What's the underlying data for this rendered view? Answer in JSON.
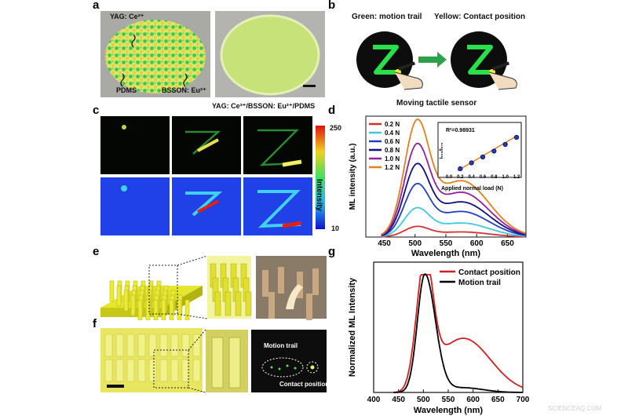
{
  "panels": {
    "a": "a",
    "b": "b",
    "c": "c",
    "d": "d",
    "e": "e",
    "f": "f",
    "g": "g"
  },
  "panel_a": {
    "label_yag": "YAG: Ce³⁺",
    "label_pdms": "PDMS",
    "label_bsson": "BSSON: Eu²⁺",
    "caption": "YAG: Ce³⁺/BSSON: Eu²⁺/PDMS"
  },
  "panel_b": {
    "green_label": "Green: motion trail",
    "yellow_label": "Yellow: Contact position",
    "caption": "Moving tactile sensor"
  },
  "panel_c": {
    "colorbar_max": "250",
    "colorbar_min": "10",
    "colorbar_label": "Intensity"
  },
  "panel_f": {
    "motion_trail": "Motion trail",
    "contact_position": "Contact position"
  },
  "chart_data": [
    {
      "id": "d",
      "type": "line",
      "xlabel": "Wavelength (nm)",
      "ylabel": "ML intensity (a.u.)",
      "xlim": [
        420,
        680
      ],
      "xticks": [
        "450",
        "500",
        "550",
        "600",
        "650"
      ],
      "yticks": "none",
      "legend_position": "top-left",
      "series": [
        {
          "name": "0.2 N",
          "color": "#d73030",
          "peak": 0.08
        },
        {
          "name": "0.4 N",
          "color": "#40c8e0",
          "peak": 0.22
        },
        {
          "name": "0.6 N",
          "color": "#2040c0",
          "peak": 0.4
        },
        {
          "name": "0.8 N",
          "color": "#101080",
          "peak": 0.55
        },
        {
          "name": "1.0 N",
          "color": "#9020a0",
          "peak": 0.7
        },
        {
          "name": "1.2 N",
          "color": "#e08020",
          "peak": 0.88
        }
      ],
      "inset": {
        "annotation": "R²=0.98931",
        "xlabel": "Applied normal load (N)",
        "ylabel": "I₅₀₀/I₅₇₀",
        "xticks": [
          "0.0",
          "0.2",
          "0.4",
          "0.6",
          "0.8",
          "1.0",
          "1.2"
        ],
        "points": [
          [
            0.2,
            0.1
          ],
          [
            0.4,
            0.25
          ],
          [
            0.6,
            0.4
          ],
          [
            0.8,
            0.55
          ],
          [
            1.0,
            0.72
          ],
          [
            1.2,
            0.9
          ]
        ]
      }
    },
    {
      "id": "g",
      "type": "line",
      "xlabel": "Wavelength (nm)",
      "ylabel": "Normalized ML Intensity",
      "xlim": [
        400,
        700
      ],
      "xticks": [
        "400",
        "450",
        "500",
        "550",
        "600",
        "650",
        "700"
      ],
      "legend_position": "top-right",
      "series": [
        {
          "name": "Contact position",
          "color": "#d02020"
        },
        {
          "name": "Motion trail",
          "color": "#000000"
        }
      ]
    }
  ],
  "watermark": "SCIENCEAQ.COM"
}
